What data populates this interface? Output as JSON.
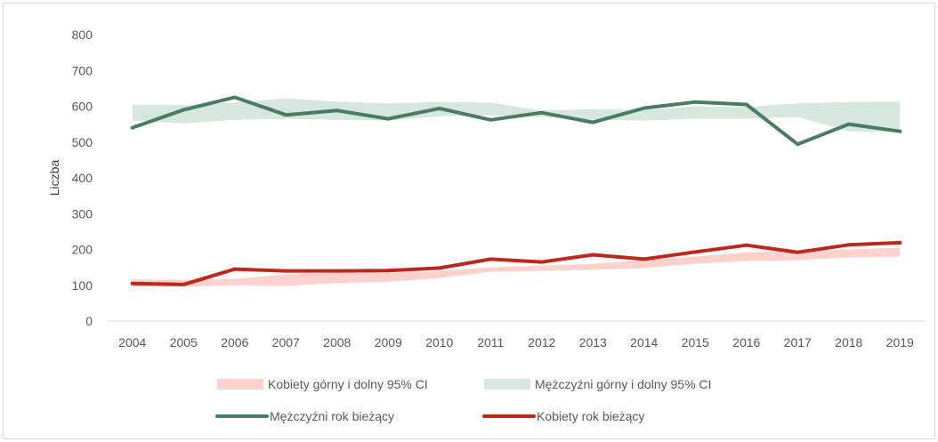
{
  "chart_data": {
    "type": "line",
    "ylabel": "Liczba",
    "xlabel": "",
    "ylim": [
      0,
      800
    ],
    "yticks": [
      0,
      100,
      200,
      300,
      400,
      500,
      600,
      700,
      800
    ],
    "categories": [
      "2004",
      "2005",
      "2006",
      "2007",
      "2008",
      "2009",
      "2010",
      "2011",
      "2012",
      "2013",
      "2014",
      "2015",
      "2016",
      "2017",
      "2018",
      "2019"
    ],
    "bands": [
      {
        "name": "Kobiety górny i dolny 95% CI",
        "color": "#ffd1cc",
        "lower": [
          96,
          96,
          100,
          98,
          106,
          110,
          120,
          138,
          140,
          143,
          148,
          160,
          168,
          170,
          178,
          180
        ],
        "upper": [
          116,
          115,
          118,
          130,
          135,
          135,
          140,
          150,
          155,
          160,
          170,
          180,
          192,
          195,
          200,
          205
        ]
      },
      {
        "name": "Mężczyźni górny i dolny 95% CI",
        "color": "#d5e7df",
        "lower": [
          560,
          552,
          562,
          565,
          562,
          560,
          572,
          575,
          570,
          562,
          560,
          565,
          565,
          570,
          530,
          528
        ],
        "upper": [
          603,
          603,
          610,
          622,
          613,
          608,
          612,
          610,
          588,
          592,
          590,
          600,
          598,
          608,
          612,
          613
        ]
      }
    ],
    "series": [
      {
        "name": "Mężczyźni rok bieżący",
        "color": "#4a7c63",
        "values": [
          540,
          590,
          625,
          576,
          588,
          565,
          594,
          562,
          582,
          555,
          595,
          612,
          605,
          494,
          550,
          530
        ]
      },
      {
        "name": "Kobiety rok bieżący",
        "color": "#c0271c",
        "values": [
          105,
          102,
          145,
          140,
          140,
          141,
          148,
          173,
          165,
          185,
          173,
          193,
          212,
          192,
          213,
          219
        ]
      }
    ],
    "grid": false,
    "legend": "bottom"
  }
}
